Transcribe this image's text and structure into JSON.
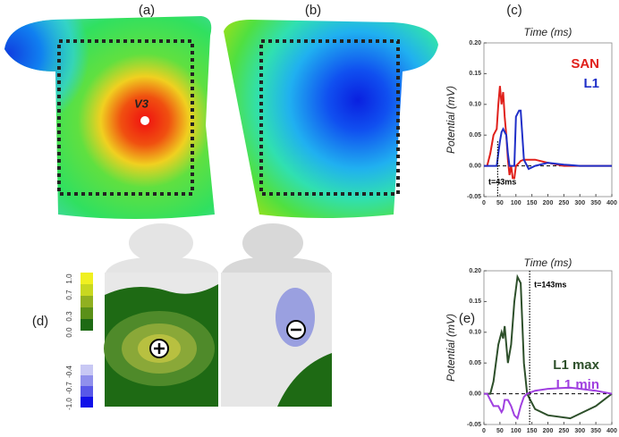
{
  "panels": {
    "a": "(a)",
    "b": "(b)",
    "d": "(d)"
  },
  "map_label": "V3",
  "colorbar": {
    "ticks": [
      {
        "value": 1,
        "label": "1.0"
      },
      0.7,
      0.3,
      {
        "value": 0,
        "label": "0.0"
      },
      -0.4,
      -0.7,
      {
        "value": -1,
        "label": "-1.0"
      }
    ]
  },
  "chart_data": [
    {
      "type": "line",
      "panel_label": "(c)",
      "title": "Time (ms)",
      "y_label": "Potential (mV)",
      "x": [
        0,
        10,
        20,
        30,
        40,
        45,
        50,
        55,
        60,
        65,
        70,
        75,
        80,
        85,
        90,
        95,
        100,
        110,
        115,
        125,
        140,
        160,
        200,
        250,
        300,
        400
      ],
      "series": [
        {
          "name": "SAN",
          "color": "#e0201b",
          "values": [
            0,
            0,
            0.02,
            0.05,
            0.06,
            0.1,
            0.13,
            0.1,
            0.12,
            0.08,
            0.05,
            0.01,
            -0.015,
            0,
            -0.02,
            -0.02,
            0,
            0.005,
            0.008,
            0.01,
            0.01,
            0.01,
            0.005,
            0,
            0,
            0
          ]
        },
        {
          "name": "L1",
          "color": "#1f2fc8",
          "values": [
            0,
            0,
            0,
            0,
            0,
            0.02,
            0.04,
            0.055,
            0.06,
            0.055,
            0.05,
            0.02,
            0,
            0,
            0,
            0,
            0.08,
            0.09,
            0.09,
            0.01,
            -0.005,
            0,
            0.005,
            0.002,
            0,
            0
          ]
        }
      ],
      "xlim": [
        0,
        400
      ],
      "xticks": [
        0,
        50,
        100,
        150,
        200,
        250,
        300,
        350,
        400
      ],
      "ylim": [
        -0.05,
        0.2
      ],
      "yticks": [
        {
          "value": -0.05,
          "label": "-0.05"
        },
        {
          "value": 0,
          "label": "0.00"
        },
        {
          "value": 0.05,
          "label": "0.05"
        },
        {
          "value": 0.1,
          "label": "0.10"
        },
        {
          "value": 0.15,
          "label": "0.15"
        },
        {
          "value": 0.2,
          "label": "0.20"
        }
      ],
      "annotation": {
        "x": 43,
        "label": "t=43ms"
      },
      "legend": "upper right"
    },
    {
      "type": "line",
      "panel_label": "(e)",
      "title": "Time (ms)",
      "y_label": "Potential (mV)",
      "x": [
        0,
        10,
        20,
        30,
        45,
        55,
        60,
        65,
        75,
        85,
        95,
        105,
        115,
        125,
        135,
        145,
        160,
        200,
        270,
        350,
        400
      ],
      "series": [
        {
          "name": "L1 max",
          "color": "#2d4f2a",
          "values": [
            0,
            0,
            0,
            0.02,
            0.08,
            0.1,
            0.09,
            0.11,
            0.05,
            0.08,
            0.15,
            0.19,
            0.18,
            0.05,
            0,
            -0.01,
            -0.025,
            -0.035,
            -0.04,
            -0.02,
            0
          ]
        },
        {
          "name": "L1 min",
          "color": "#a040e0",
          "values": [
            0,
            0,
            -0.01,
            -0.02,
            -0.02,
            -0.03,
            -0.025,
            -0.01,
            -0.01,
            -0.02,
            -0.035,
            -0.04,
            -0.02,
            -0.005,
            0,
            0.002,
            0.005,
            0.008,
            0.01,
            0.005,
            0
          ]
        }
      ],
      "xlim": [
        0,
        400
      ],
      "xticks": [
        0,
        50,
        100,
        150,
        200,
        250,
        300,
        350,
        400
      ],
      "ylim": [
        -0.05,
        0.2
      ],
      "yticks": [
        {
          "value": -0.05,
          "label": "-0.05"
        },
        {
          "value": 0,
          "label": "0.00"
        },
        {
          "value": 0.05,
          "label": "0.05"
        },
        {
          "value": 0.1,
          "label": "0.10"
        },
        {
          "value": 0.15,
          "label": "0.15"
        },
        {
          "value": 0.2,
          "label": "0.20"
        }
      ],
      "annotation": {
        "x": 143,
        "label": "t=143ms"
      },
      "legend": "center right"
    }
  ]
}
